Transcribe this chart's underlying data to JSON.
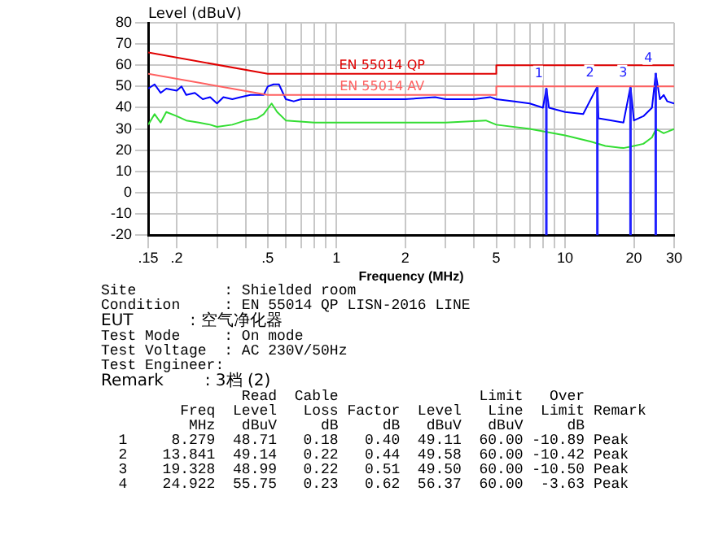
{
  "chart_data": {
    "type": "line",
    "ylabel": "Level (dBuV)",
    "xlabel": "Frequency (MHz)",
    "log": "x",
    "grid": true,
    "legend": false,
    "marker": "none",
    "xlim": [
      0.15,
      30
    ],
    "xticks": [
      {
        "value": 0.15,
        "label": ".15"
      },
      {
        "value": 0.2,
        "label": ".2"
      },
      {
        "value": 0.3,
        "label": null
      },
      {
        "value": 0.4,
        "label": null
      },
      {
        "value": 0.5,
        "label": ".5"
      },
      {
        "value": 0.6,
        "label": null
      },
      {
        "value": 0.7,
        "label": null
      },
      {
        "value": 0.8,
        "label": null
      },
      {
        "value": 0.9,
        "label": null
      },
      1,
      2,
      {
        "value": 3,
        "label": null
      },
      {
        "value": 4,
        "label": null
      },
      5,
      {
        "value": 6,
        "label": null
      },
      {
        "value": 7,
        "label": null
      },
      {
        "value": 8,
        "label": null
      },
      {
        "value": 9,
        "label": null
      },
      10,
      20,
      30
    ],
    "ylim": [
      -20,
      80
    ],
    "yticks": [
      -20,
      -10,
      0,
      10,
      20,
      30,
      40,
      50,
      60,
      70,
      80
    ],
    "series": [
      {
        "name": "EN 55014 QP",
        "color": "#e00000",
        "x": [
          0.15,
          0.5,
          5,
          5,
          30
        ],
        "values": [
          66,
          56,
          56,
          60,
          60
        ]
      },
      {
        "name": "EN 55014 AV",
        "color": "#ff6060",
        "x": [
          0.15,
          0.5,
          5,
          5,
          30
        ],
        "values": [
          56,
          46,
          46,
          50,
          50
        ]
      },
      {
        "color": "#0000ff",
        "x": [
          0.15,
          0.16,
          0.17,
          0.18,
          0.2,
          0.21,
          0.22,
          0.24,
          0.26,
          0.28,
          0.3,
          0.32,
          0.35,
          0.38,
          0.42,
          0.45,
          0.48,
          0.5,
          0.53,
          0.56,
          0.6,
          0.65,
          0.7,
          0.8,
          1,
          1.5,
          2,
          2.7,
          3,
          4,
          4.7,
          5,
          6,
          7,
          8,
          8.279,
          8.5,
          10,
          12,
          13.841,
          14,
          16,
          18,
          19.328,
          20,
          22,
          24,
          24.922,
          26,
          27,
          28,
          30
        ],
        "values": [
          49,
          51,
          47,
          49,
          48,
          50,
          46,
          47,
          44,
          45,
          42,
          45,
          44,
          45,
          46,
          46,
          46,
          50,
          51,
          51,
          44,
          43,
          44,
          44,
          44,
          44,
          44,
          45,
          44,
          44,
          45,
          44,
          43,
          42,
          40,
          49,
          40,
          38,
          37,
          50,
          35,
          34,
          33,
          50,
          34,
          36,
          40,
          56,
          44,
          46,
          43,
          42
        ]
      },
      {
        "color": "#33dd33",
        "x": [
          0.15,
          0.16,
          0.17,
          0.18,
          0.2,
          0.22,
          0.25,
          0.28,
          0.3,
          0.35,
          0.4,
          0.45,
          0.48,
          0.52,
          0.55,
          0.6,
          0.8,
          1,
          2,
          3,
          4.5,
          5,
          7,
          10,
          13,
          15,
          18,
          20,
          22,
          24,
          25,
          27,
          30
        ],
        "values": [
          32,
          37,
          33,
          38,
          36,
          34,
          33,
          32,
          31,
          32,
          34,
          35,
          37,
          42,
          38,
          34,
          33,
          33,
          33,
          33,
          34,
          32,
          30,
          27,
          24,
          22,
          21,
          22,
          23,
          26,
          30,
          28,
          30
        ]
      }
    ],
    "annotations": [
      {
        "text": "1",
        "x": 8.279,
        "y": 49.11
      },
      {
        "text": "2",
        "x": 13.841,
        "y": 49.58
      },
      {
        "text": "3",
        "x": 19.328,
        "y": 49.5
      },
      {
        "text": "4",
        "x": 24.922,
        "y": 56.37
      },
      "Site          : Shielded room",
      "Condition     : EN 55014 QP LISN-2016 LINE",
      "EUT           : 空气净化器",
      "Test Mode     : On mode",
      "Test Voltage  : AC 230V/50Hz",
      "Test Engineer:",
      "Remark        : 3档 (2)",
      "                Read  Cable                Limit   Over",
      "         Freq  Level   Loss Factor  Level   Line  Limit Remark",
      "          MHz   dBuV     dB     dB   dBuV   dBuV     dB",
      "  1     8.279  48.71   0.18   0.40  49.11  60.00 -10.89 Peak",
      "  2    13.841  49.14   0.22   0.44  49.58  60.00 -10.42 Peak",
      "  3    19.328  48.99   0.22   0.51  49.50  60.00 -10.50 Peak",
      "  4    24.922  55.75   0.23   0.62  56.37  60.00  -3.63 Peak"
    ]
  }
}
